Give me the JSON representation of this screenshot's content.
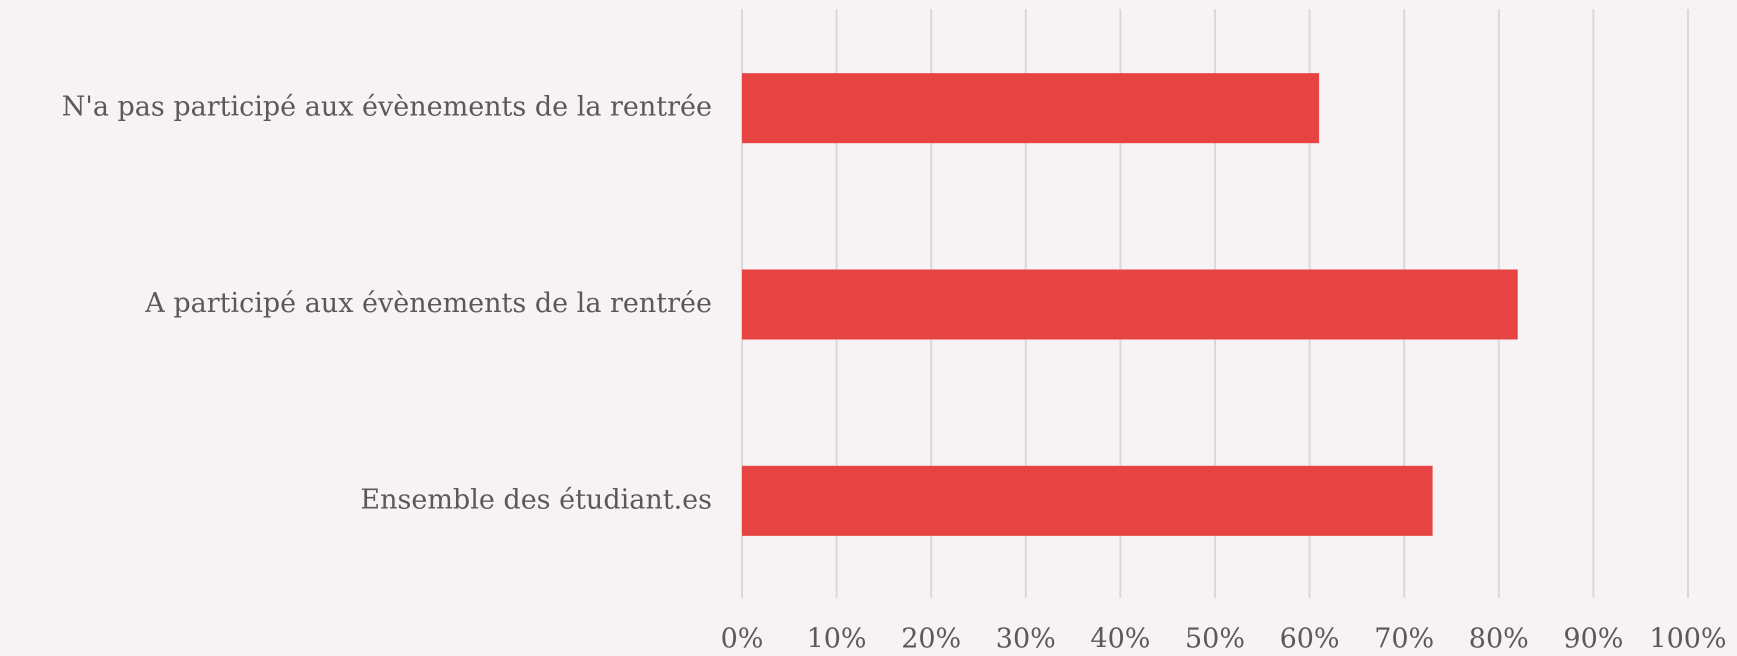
{
  "chart_data": {
    "type": "barh",
    "categories": [
      "N'a pas participé aux évènements de la rentrée",
      "A participé aux évènements de la rentrée",
      "Ensemble des étudiant.es"
    ],
    "values": [
      61,
      82,
      73
    ],
    "color": "#e84343",
    "xlim": [
      0,
      100
    ],
    "xticks": [
      {
        "value": 0,
        "label": "0%"
      },
      {
        "value": 10,
        "label": "10%"
      },
      {
        "value": 20,
        "label": "20%"
      },
      {
        "value": 30,
        "label": "30%"
      },
      {
        "value": 40,
        "label": "40%"
      },
      {
        "value": 50,
        "label": "50%"
      },
      {
        "value": 60,
        "label": "60%"
      },
      {
        "value": 70,
        "label": "70%"
      },
      {
        "value": 80,
        "label": "80%"
      },
      {
        "value": 90,
        "label": "90%"
      },
      {
        "value": 100,
        "label": "100%"
      }
    ],
    "grid": true
  }
}
